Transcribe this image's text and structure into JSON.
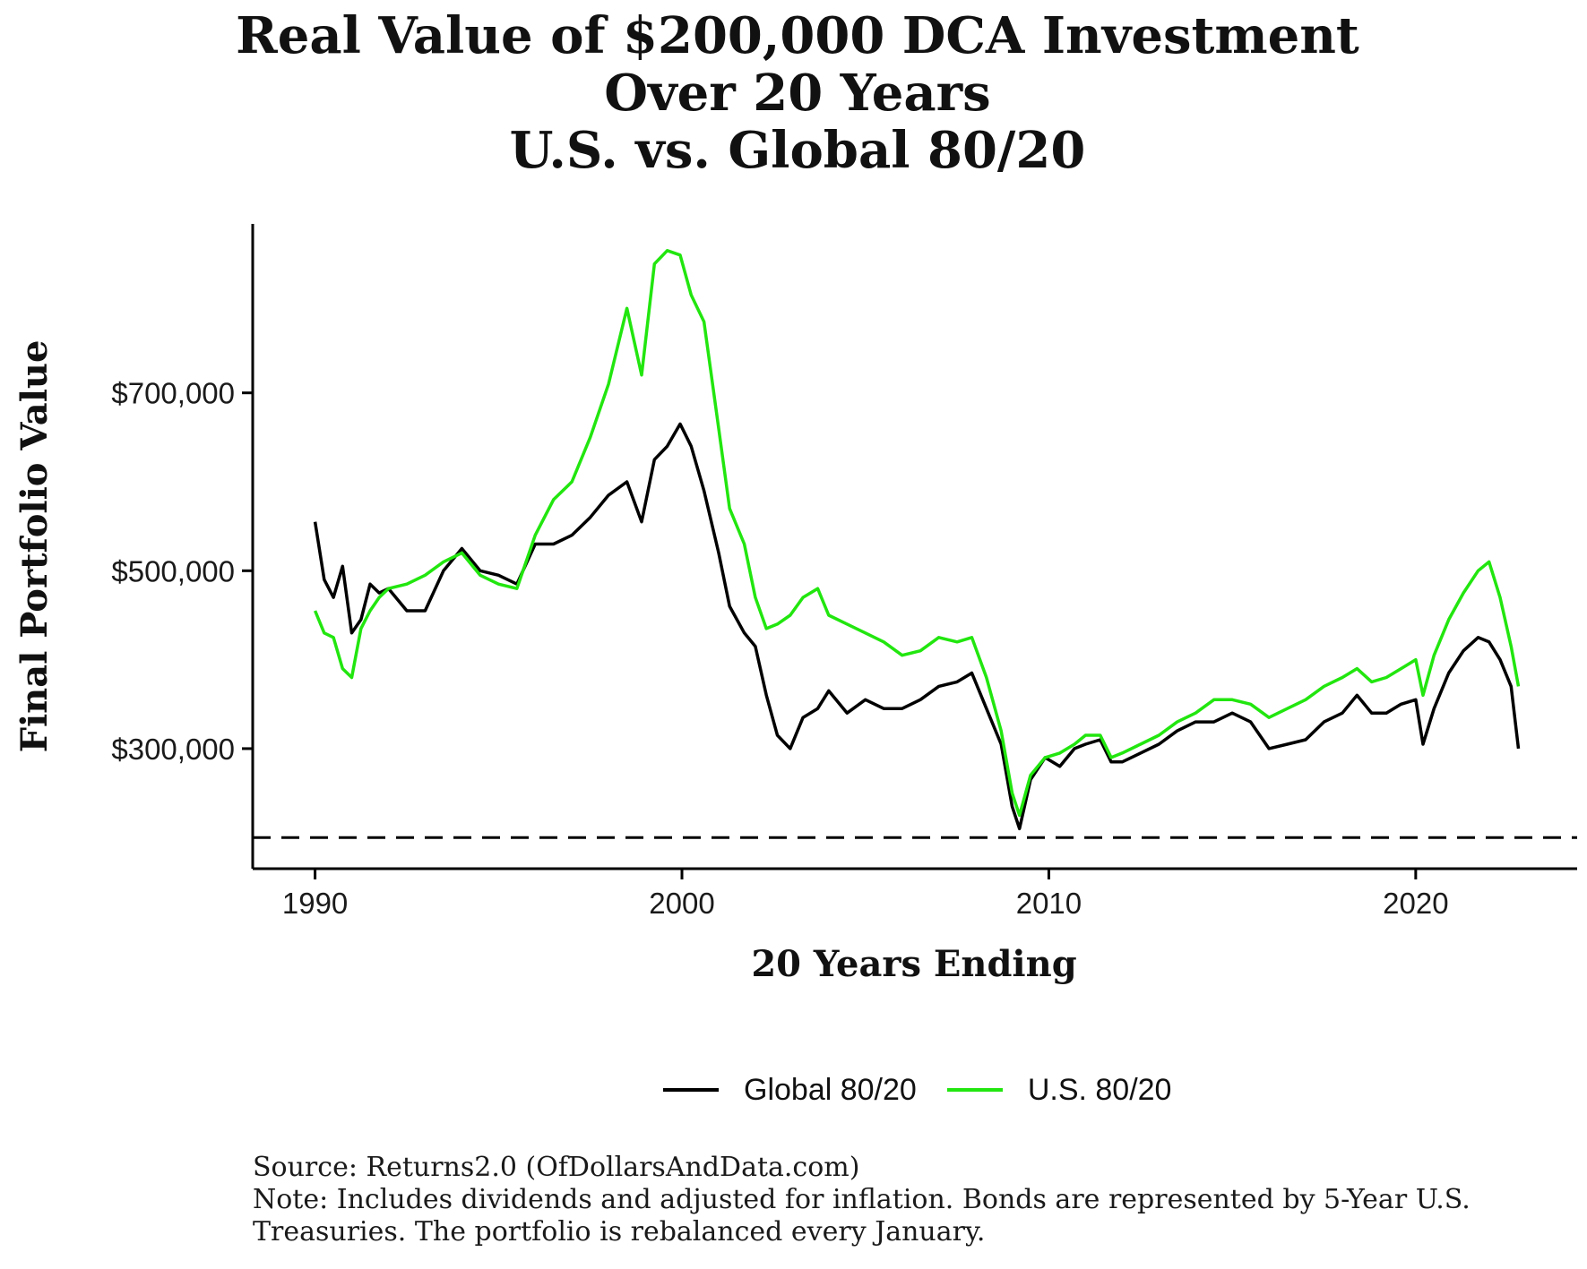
{
  "title_lines": [
    "Real Value of $200,000 DCA Investment",
    "Over 20 Years",
    "U.S. vs. Global 80/20"
  ],
  "footer": {
    "source": "Source: Returns2.0 (OfDollarsAndData.com)",
    "note": "Note: Includes dividends and adjusted for inflation. Bonds are represented by 5-Year U.S. Treasuries. The portfolio is rebalanced every January."
  },
  "chart_data": {
    "type": "line",
    "title": "Real Value of $200,000 DCA Investment Over 20 Years U.S. vs. Global 80/20",
    "xlabel": "20 Years Ending",
    "ylabel": "Final Portfolio Value",
    "xlim": [
      1988.3,
      2024.4
    ],
    "ylim": [
      165000,
      890000
    ],
    "x_ticks": [
      1990,
      2000,
      2010,
      2020
    ],
    "y_ticks": [
      300000,
      500000,
      700000
    ],
    "y_tick_labels": [
      "$300,000",
      "$500,000",
      "$700,000"
    ],
    "reference_line": {
      "y": 200000,
      "style": "dashed"
    },
    "legend_position": "bottom",
    "grid": false,
    "series": [
      {
        "name": "Global 80/20",
        "color": "#000000",
        "x": [
          1990.0,
          1990.25,
          1990.5,
          1990.75,
          1991.0,
          1991.25,
          1991.5,
          1991.75,
          1992.0,
          1992.5,
          1993.0,
          1993.5,
          1994.0,
          1994.5,
          1995.0,
          1995.5,
          1996.0,
          1996.5,
          1997.0,
          1997.5,
          1998.0,
          1998.5,
          1998.9,
          1999.25,
          1999.6,
          1999.95,
          2000.25,
          2000.6,
          2001.0,
          2001.3,
          2001.7,
          2002.0,
          2002.3,
          2002.6,
          2002.95,
          2003.3,
          2003.7,
          2004.0,
          2004.5,
          2005.0,
          2005.5,
          2006.0,
          2006.5,
          2007.0,
          2007.5,
          2007.9,
          2008.3,
          2008.7,
          2009.0,
          2009.2,
          2009.5,
          2009.9,
          2010.3,
          2010.7,
          2011.0,
          2011.4,
          2011.7,
          2012.0,
          2012.5,
          2013.0,
          2013.5,
          2014.0,
          2014.5,
          2015.0,
          2015.5,
          2016.0,
          2016.5,
          2017.0,
          2017.5,
          2018.0,
          2018.4,
          2018.8,
          2019.2,
          2019.6,
          2020.0,
          2020.2,
          2020.5,
          2020.9,
          2021.3,
          2021.7,
          2022.0,
          2022.3,
          2022.6,
          2022.8
        ],
        "values": [
          555000,
          490000,
          470000,
          505000,
          430000,
          445000,
          485000,
          475000,
          480000,
          455000,
          455000,
          500000,
          525000,
          500000,
          495000,
          485000,
          530000,
          530000,
          540000,
          560000,
          585000,
          600000,
          555000,
          625000,
          640000,
          665000,
          640000,
          590000,
          520000,
          460000,
          430000,
          415000,
          360000,
          315000,
          300000,
          335000,
          345000,
          365000,
          340000,
          355000,
          345000,
          345000,
          355000,
          370000,
          375000,
          385000,
          345000,
          305000,
          235000,
          210000,
          265000,
          290000,
          280000,
          300000,
          305000,
          310000,
          285000,
          285000,
          295000,
          305000,
          320000,
          330000,
          330000,
          340000,
          330000,
          300000,
          305000,
          310000,
          330000,
          340000,
          360000,
          340000,
          340000,
          350000,
          355000,
          305000,
          345000,
          385000,
          410000,
          425000,
          420000,
          400000,
          370000,
          300000
        ]
      },
      {
        "name": "U.S. 80/20",
        "color": "#22e60f",
        "x": [
          1990.0,
          1990.25,
          1990.5,
          1990.75,
          1991.0,
          1991.25,
          1991.5,
          1991.75,
          1992.0,
          1992.5,
          1993.0,
          1993.5,
          1994.0,
          1994.5,
          1995.0,
          1995.5,
          1996.0,
          1996.5,
          1997.0,
          1997.5,
          1998.0,
          1998.5,
          1998.9,
          1999.25,
          1999.6,
          1999.95,
          2000.25,
          2000.6,
          2001.0,
          2001.3,
          2001.7,
          2002.0,
          2002.3,
          2002.6,
          2002.95,
          2003.3,
          2003.7,
          2004.0,
          2004.5,
          2005.0,
          2005.5,
          2006.0,
          2006.5,
          2007.0,
          2007.5,
          2007.9,
          2008.3,
          2008.7,
          2009.0,
          2009.2,
          2009.5,
          2009.9,
          2010.3,
          2010.7,
          2011.0,
          2011.4,
          2011.7,
          2012.0,
          2012.5,
          2013.0,
          2013.5,
          2014.0,
          2014.5,
          2015.0,
          2015.5,
          2016.0,
          2016.5,
          2017.0,
          2017.5,
          2018.0,
          2018.4,
          2018.8,
          2019.2,
          2019.6,
          2020.0,
          2020.2,
          2020.5,
          2020.9,
          2021.3,
          2021.7,
          2022.0,
          2022.3,
          2022.6,
          2022.8
        ],
        "values": [
          455000,
          430000,
          425000,
          390000,
          380000,
          435000,
          455000,
          470000,
          480000,
          485000,
          495000,
          510000,
          520000,
          495000,
          485000,
          480000,
          540000,
          580000,
          600000,
          650000,
          710000,
          795000,
          720000,
          845000,
          860000,
          855000,
          810000,
          780000,
          660000,
          570000,
          530000,
          470000,
          435000,
          440000,
          450000,
          470000,
          480000,
          450000,
          440000,
          430000,
          420000,
          405000,
          410000,
          425000,
          420000,
          425000,
          380000,
          320000,
          250000,
          225000,
          270000,
          290000,
          295000,
          305000,
          315000,
          315000,
          290000,
          295000,
          305000,
          315000,
          330000,
          340000,
          355000,
          355000,
          350000,
          335000,
          345000,
          355000,
          370000,
          380000,
          390000,
          375000,
          380000,
          390000,
          400000,
          360000,
          405000,
          445000,
          475000,
          500000,
          510000,
          470000,
          415000,
          370000
        ]
      }
    ]
  }
}
